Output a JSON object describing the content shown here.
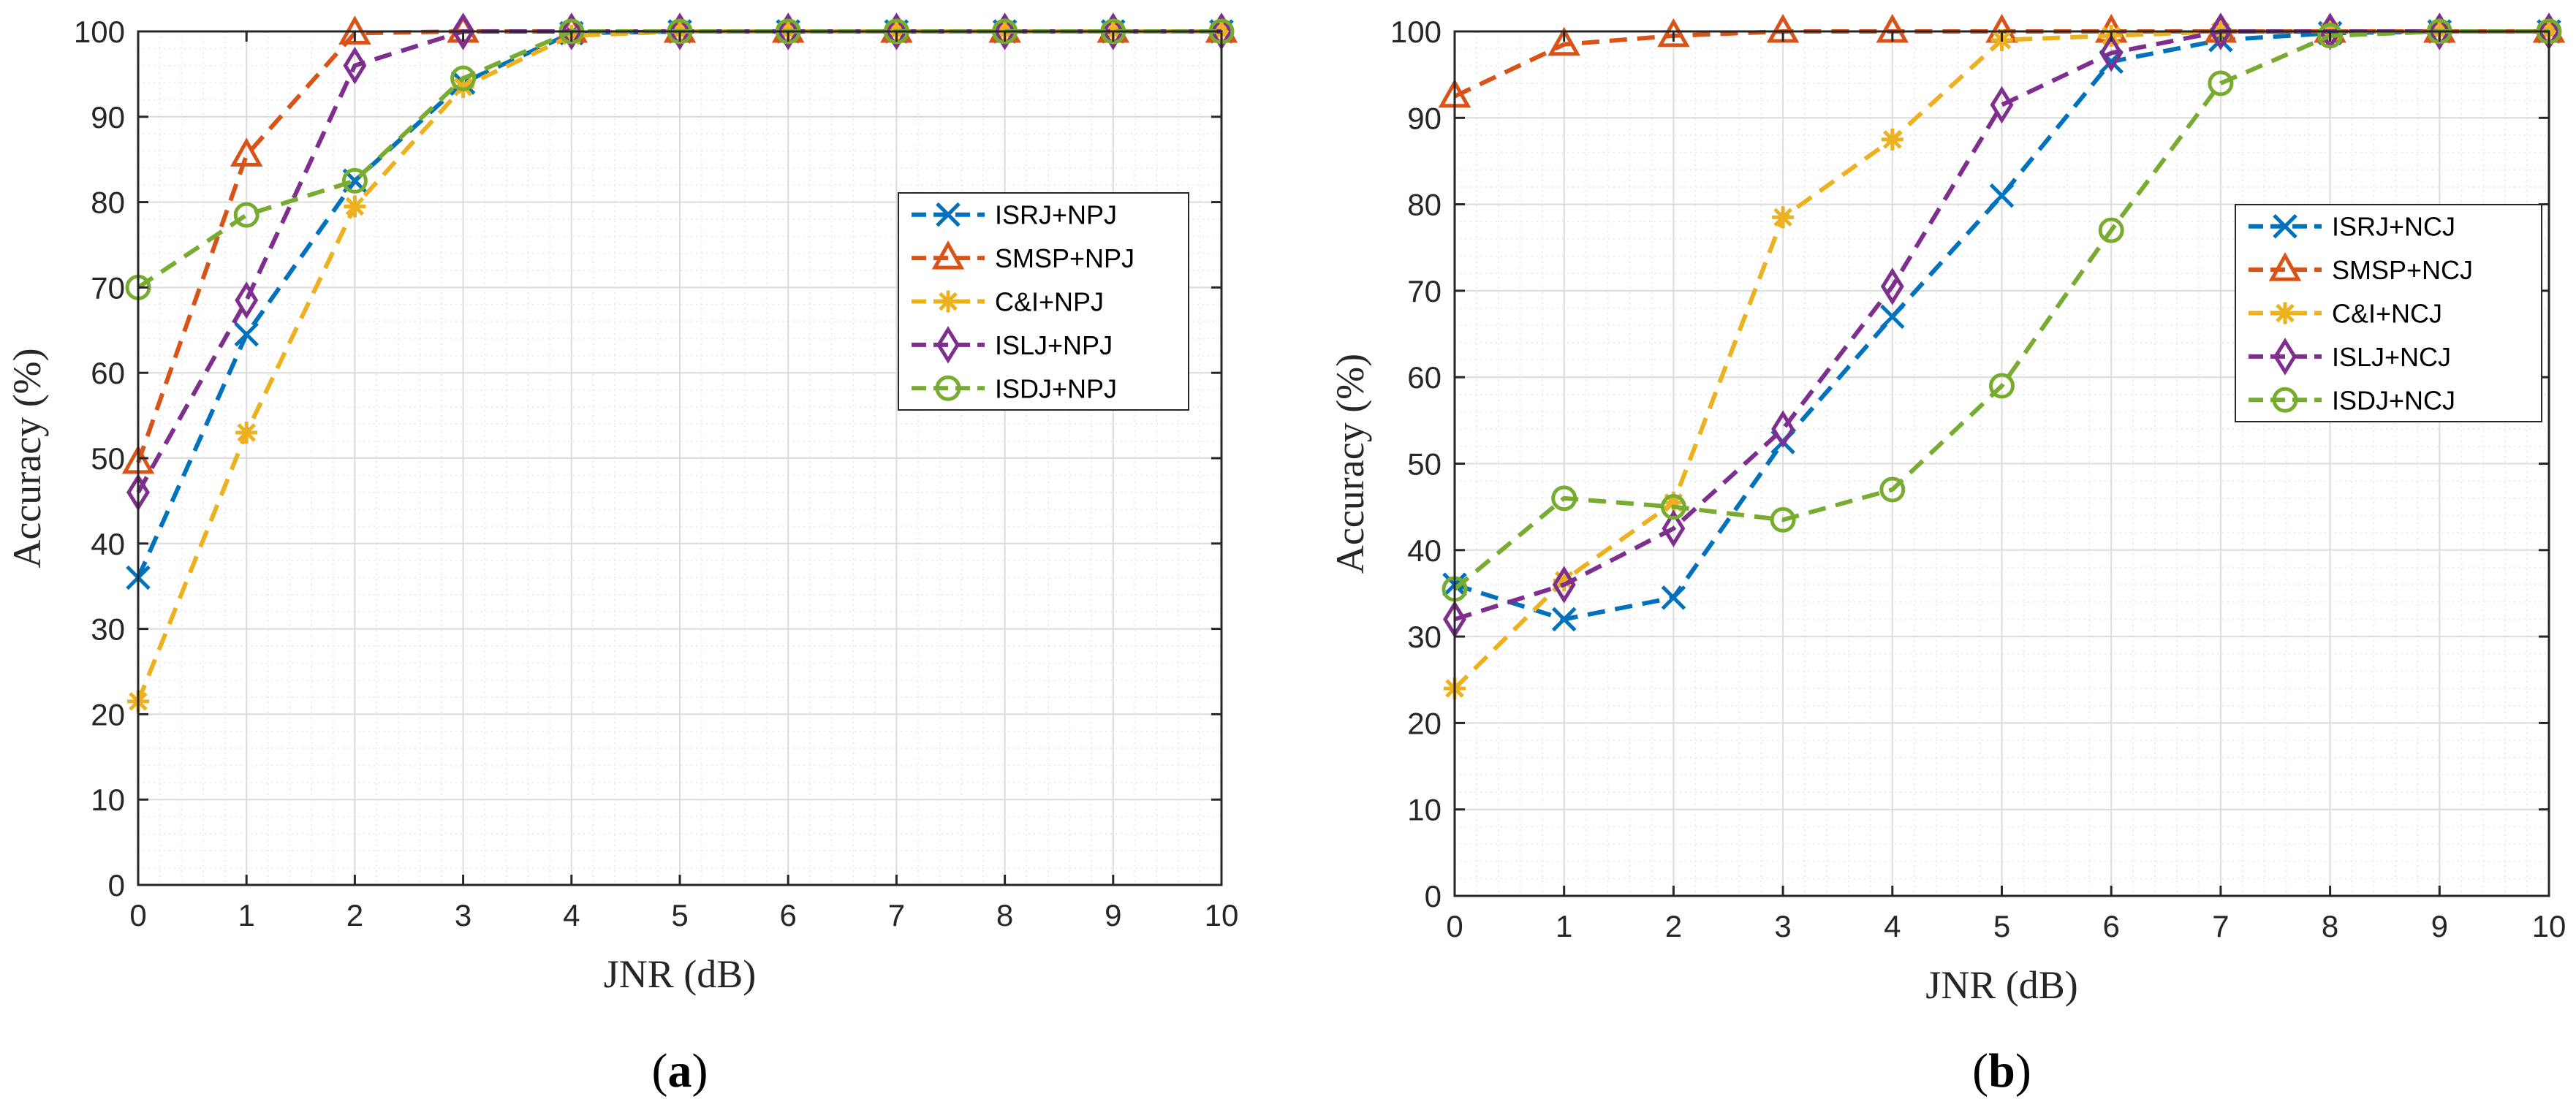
{
  "colors": {
    "blue": "#0072BD",
    "orange": "#D95319",
    "yellow": "#EDB120",
    "purple": "#7E2F8E",
    "green": "#77AC30",
    "grid_major": "#dcdcdc",
    "grid_minor": "#ececec",
    "axis": "#262626"
  },
  "chart_data": [
    {
      "id": "a",
      "type": "line",
      "caption_open": "(",
      "caption_letter": "a",
      "caption_close": ")",
      "xlabel": "JNR (dB)",
      "ylabel": "Accuracy (%)",
      "xlim": [
        0,
        10
      ],
      "ylim": [
        0,
        100
      ],
      "xticks": [
        "0",
        "1",
        "2",
        "3",
        "4",
        "5",
        "6",
        "7",
        "8",
        "9",
        "10"
      ],
      "yticks": [
        "0",
        "10",
        "20",
        "30",
        "40",
        "50",
        "60",
        "70",
        "80",
        "90",
        "100"
      ],
      "grid": "on (major and minor)",
      "legend_position": "right-center",
      "x": [
        0,
        1,
        2,
        3,
        4,
        5,
        6,
        7,
        8,
        9,
        10
      ],
      "series": [
        {
          "name": "ISRJ+NPJ",
          "color": "blue",
          "marker": "x",
          "values": [
            36,
            64.5,
            82.5,
            94,
            99.8,
            100,
            100,
            100,
            100,
            100,
            100
          ]
        },
        {
          "name": "SMSP+NPJ",
          "color": "orange",
          "marker": "triangle",
          "values": [
            49.5,
            85.5,
            99.8,
            100,
            100,
            100,
            100,
            100,
            100,
            100,
            100
          ]
        },
        {
          "name": "C&I+NPJ",
          "color": "yellow",
          "marker": "asterisk",
          "values": [
            21.5,
            53,
            79.5,
            93.5,
            99.5,
            100,
            100,
            100,
            100,
            100,
            100
          ]
        },
        {
          "name": "ISLJ+NPJ",
          "color": "purple",
          "marker": "diamond",
          "values": [
            46,
            68.5,
            96,
            100,
            100,
            100,
            100,
            100,
            100,
            100,
            100
          ]
        },
        {
          "name": "ISDJ+NPJ",
          "color": "green",
          "marker": "circle",
          "values": [
            70,
            78.5,
            82.5,
            94.5,
            100,
            100,
            100,
            100,
            100,
            100,
            100
          ]
        }
      ]
    },
    {
      "id": "b",
      "type": "line",
      "caption_open": "(",
      "caption_letter": "b",
      "caption_close": ")",
      "xlabel": "JNR (dB)",
      "ylabel": "Accuracy (%)",
      "xlim": [
        0,
        10
      ],
      "ylim": [
        0,
        100
      ],
      "xticks": [
        "0",
        "1",
        "2",
        "3",
        "4",
        "5",
        "6",
        "7",
        "8",
        "9",
        "10"
      ],
      "yticks": [
        "0",
        "10",
        "20",
        "30",
        "40",
        "50",
        "60",
        "70",
        "80",
        "90",
        "100"
      ],
      "grid": "on (major and minor)",
      "legend_position": "right-center",
      "x": [
        0,
        1,
        2,
        3,
        4,
        5,
        6,
        7,
        8,
        9,
        10
      ],
      "series": [
        {
          "name": "ISRJ+NCJ",
          "color": "blue",
          "marker": "x",
          "values": [
            36,
            32,
            34.5,
            52.5,
            67,
            81,
            96.5,
            99,
            99.8,
            100,
            100
          ]
        },
        {
          "name": "SMSP+NCJ",
          "color": "orange",
          "marker": "triangle",
          "values": [
            92.5,
            98.5,
            99.5,
            100,
            100,
            100,
            100,
            100,
            100,
            100,
            100
          ]
        },
        {
          "name": "C&I+NCJ",
          "color": "yellow",
          "marker": "asterisk",
          "values": [
            24,
            36.5,
            45.5,
            78.5,
            87.5,
            99,
            99.5,
            100,
            100,
            100,
            100
          ]
        },
        {
          "name": "ISLJ+NCJ",
          "color": "purple",
          "marker": "diamond",
          "values": [
            32,
            36,
            42.5,
            54,
            70.5,
            91.5,
            97.5,
            100,
            100,
            100,
            100
          ]
        },
        {
          "name": "ISDJ+NCJ",
          "color": "green",
          "marker": "circle",
          "values": [
            35.5,
            46,
            45,
            43.5,
            47,
            59,
            77,
            94,
            99.5,
            100,
            100
          ]
        }
      ]
    }
  ]
}
